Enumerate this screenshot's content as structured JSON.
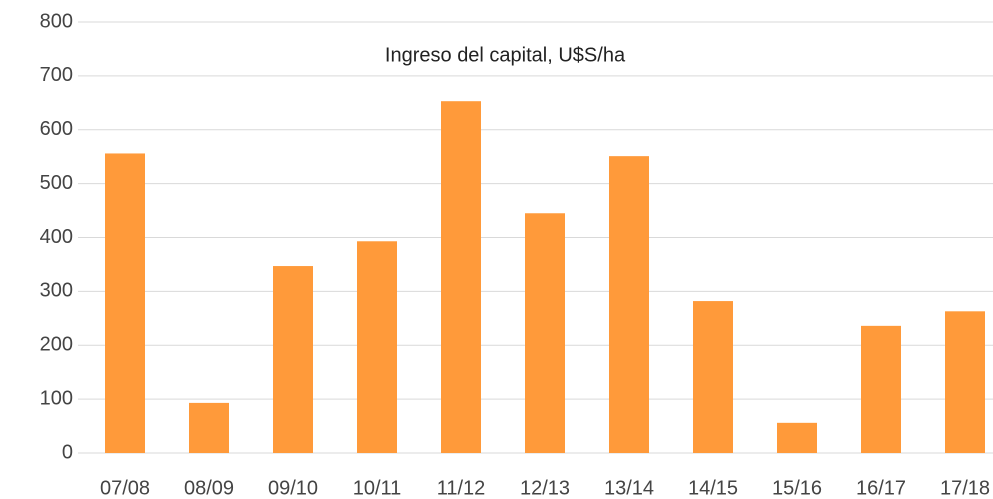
{
  "chart_data": {
    "type": "bar",
    "title": "Ingreso del capital, U$S/ha",
    "categories": [
      "07/08",
      "08/09",
      "09/10",
      "10/11",
      "11/12",
      "12/13",
      "13/14",
      "14/15",
      "15/16",
      "16/17",
      "17/18"
    ],
    "values": [
      556,
      93,
      347,
      393,
      653,
      445,
      551,
      282,
      56,
      236,
      263
    ],
    "color": "#ff9a3a",
    "ylim": [
      0,
      800
    ],
    "yticks": [
      0,
      100,
      200,
      300,
      400,
      500,
      600,
      700,
      800
    ],
    "grid": true
  }
}
